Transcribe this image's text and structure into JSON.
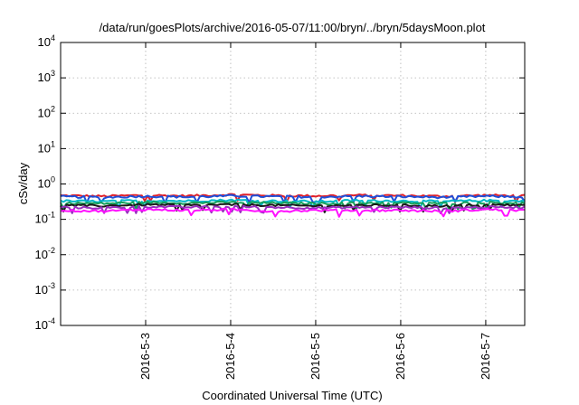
{
  "chart_data": {
    "type": "line",
    "title": "/data/run/goesPlots/archive/2016-05-07/11:00/bryn/../bryn/5daysMoon.plot",
    "xlabel": "Coordinated Universal Time (UTC)",
    "ylabel": "cSv/day",
    "yscale": "log",
    "ylim": [
      0.0001,
      10000
    ],
    "xlim": [
      "2016-05-02T00:00",
      "2016-05-07T11:00"
    ],
    "grid": true,
    "y_ticks": [
      {
        "base": "10",
        "exp": "-4",
        "value": 0.0001
      },
      {
        "base": "10",
        "exp": "-3",
        "value": 0.001
      },
      {
        "base": "10",
        "exp": "-2",
        "value": 0.01
      },
      {
        "base": "10",
        "exp": "-1",
        "value": 0.1
      },
      {
        "base": "10",
        "exp": "0",
        "value": 1
      },
      {
        "base": "10",
        "exp": "1",
        "value": 10
      },
      {
        "base": "10",
        "exp": "2",
        "value": 100
      },
      {
        "base": "10",
        "exp": "3",
        "value": 1000
      },
      {
        "base": "10",
        "exp": "4",
        "value": 10000
      }
    ],
    "x_ticks": [
      {
        "label": "2016-5-3",
        "value": "2016-05-03T00:00"
      },
      {
        "label": "2016-5-4",
        "value": "2016-05-04T00:00"
      },
      {
        "label": "2016-5-5",
        "value": "2016-05-05T00:00"
      },
      {
        "label": "2016-5-6",
        "value": "2016-05-06T00:00"
      },
      {
        "label": "2016-5-7",
        "value": "2016-05-07T00:00"
      }
    ],
    "series": [
      {
        "color": "#e0202a",
        "x": [
          "2016-05-02T00:00",
          "2016-05-02T12:00",
          "2016-05-03T00:00",
          "2016-05-03T12:00",
          "2016-05-04T00:00",
          "2016-05-04T12:00",
          "2016-05-05T00:00",
          "2016-05-05T12:00",
          "2016-05-06T00:00",
          "2016-05-06T12:00",
          "2016-05-07T00:00",
          "2016-05-07T11:00"
        ],
        "values": [
          0.47,
          0.45,
          0.48,
          0.46,
          0.5,
          0.47,
          0.46,
          0.48,
          0.47,
          0.45,
          0.48,
          0.46
        ]
      },
      {
        "color": "#1f4fd8",
        "x": [
          "2016-05-02T00:00",
          "2016-05-02T12:00",
          "2016-05-03T00:00",
          "2016-05-03T12:00",
          "2016-05-04T00:00",
          "2016-05-04T12:00",
          "2016-05-05T00:00",
          "2016-05-05T12:00",
          "2016-05-06T00:00",
          "2016-05-06T12:00",
          "2016-05-07T00:00",
          "2016-05-07T11:00"
        ],
        "values": [
          0.44,
          0.42,
          0.45,
          0.43,
          0.46,
          0.44,
          0.43,
          0.45,
          0.44,
          0.42,
          0.45,
          0.43
        ]
      },
      {
        "color": "#00b8c8",
        "x": [
          "2016-05-02T00:00",
          "2016-05-02T12:00",
          "2016-05-03T00:00",
          "2016-05-03T12:00",
          "2016-05-04T00:00",
          "2016-05-04T12:00",
          "2016-05-05T00:00",
          "2016-05-05T12:00",
          "2016-05-06T00:00",
          "2016-05-06T12:00",
          "2016-05-07T00:00",
          "2016-05-07T11:00"
        ],
        "values": [
          0.33,
          0.32,
          0.34,
          0.33,
          0.35,
          0.33,
          0.32,
          0.34,
          0.33,
          0.32,
          0.34,
          0.33
        ]
      },
      {
        "color": "#16a05a",
        "x": [
          "2016-05-02T00:00",
          "2016-05-02T12:00",
          "2016-05-03T00:00",
          "2016-05-03T12:00",
          "2016-05-04T00:00",
          "2016-05-04T12:00",
          "2016-05-05T00:00",
          "2016-05-05T12:00",
          "2016-05-06T00:00",
          "2016-05-06T12:00",
          "2016-05-07T00:00",
          "2016-05-07T11:00"
        ],
        "values": [
          0.29,
          0.28,
          0.3,
          0.29,
          0.3,
          0.29,
          0.28,
          0.29,
          0.29,
          0.28,
          0.3,
          0.29
        ]
      },
      {
        "color": "#1a1a1a",
        "x": [
          "2016-05-02T00:00",
          "2016-05-02T12:00",
          "2016-05-03T00:00",
          "2016-05-03T12:00",
          "2016-05-04T00:00",
          "2016-05-04T12:00",
          "2016-05-05T00:00",
          "2016-05-05T12:00",
          "2016-05-06T00:00",
          "2016-05-06T12:00",
          "2016-05-07T00:00",
          "2016-05-07T11:00"
        ],
        "values": [
          0.25,
          0.24,
          0.26,
          0.25,
          0.26,
          0.25,
          0.24,
          0.25,
          0.25,
          0.24,
          0.26,
          0.25
        ]
      },
      {
        "color": "#9a2fbf",
        "x": [
          "2016-05-02T00:00",
          "2016-05-02T12:00",
          "2016-05-03T00:00",
          "2016-05-03T12:00",
          "2016-05-04T00:00",
          "2016-05-04T12:00",
          "2016-05-05T00:00",
          "2016-05-05T12:00",
          "2016-05-06T00:00",
          "2016-05-06T12:00",
          "2016-05-07T00:00",
          "2016-05-07T11:00"
        ],
        "values": [
          0.22,
          0.21,
          0.23,
          0.22,
          0.23,
          0.22,
          0.21,
          0.22,
          0.22,
          0.21,
          0.22,
          0.22
        ]
      },
      {
        "color": "#ff10ff",
        "x": [
          "2016-05-02T00:00",
          "2016-05-02T12:00",
          "2016-05-03T00:00",
          "2016-05-03T12:00",
          "2016-05-04T00:00",
          "2016-05-04T12:00",
          "2016-05-05T00:00",
          "2016-05-05T12:00",
          "2016-05-06T00:00",
          "2016-05-06T12:00",
          "2016-05-07T00:00",
          "2016-05-07T11:00"
        ],
        "values": [
          0.18,
          0.17,
          0.19,
          0.18,
          0.19,
          0.17,
          0.18,
          0.18,
          0.18,
          0.17,
          0.19,
          0.18
        ]
      }
    ]
  }
}
